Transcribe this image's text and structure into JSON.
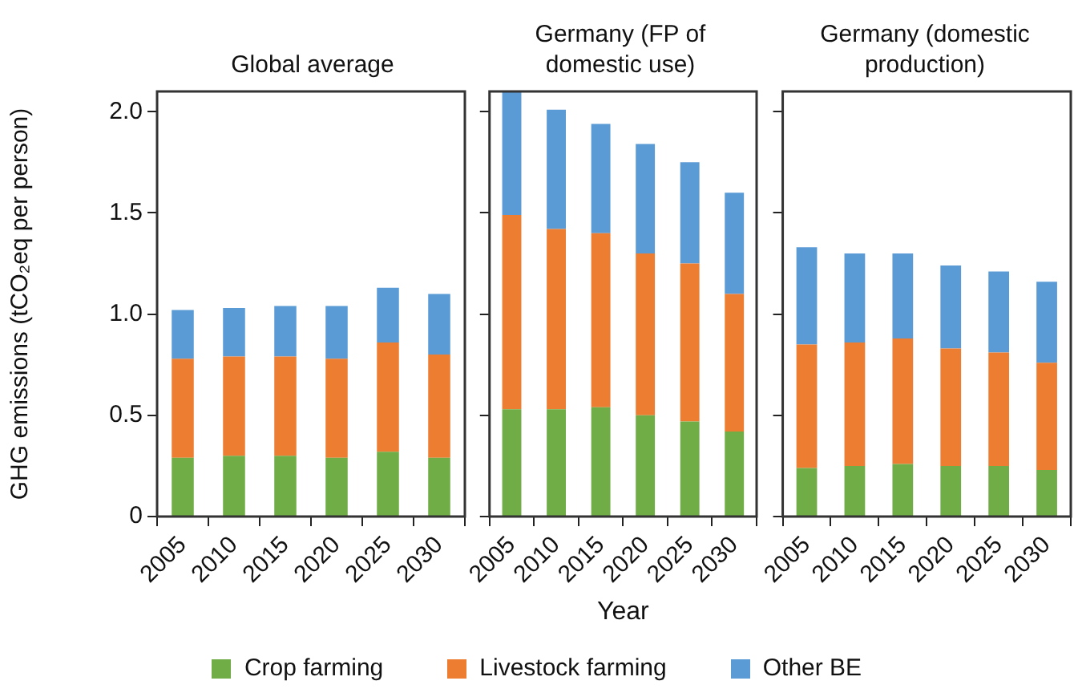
{
  "chart_data": [
    {
      "type": "bar",
      "title": "Global average",
      "ylabel": "GHG emissions (tCO₂eq per person)",
      "categories": [
        "2005",
        "2010",
        "2015",
        "2020",
        "2025",
        "2030"
      ],
      "stacked": true,
      "ylim": [
        0,
        2.1
      ],
      "yticks": [
        {
          "value": 0,
          "label": "0"
        },
        {
          "value": 0.5,
          "label": "0.5"
        },
        {
          "value": 1,
          "label": "1.0"
        },
        {
          "value": 1.5,
          "label": "1.5"
        },
        {
          "value": 2,
          "label": "2.0"
        }
      ],
      "grid": false,
      "legend": "bottom",
      "series": [
        {
          "name": "Crop farming",
          "color": "#70ad47",
          "values": [
            0.29,
            0.3,
            0.3,
            0.29,
            0.32,
            0.29
          ]
        },
        {
          "name": "Livestock farming",
          "color": "#ed7d31",
          "values": [
            0.49,
            0.49,
            0.49,
            0.49,
            0.54,
            0.51
          ]
        },
        {
          "name": "Other BE",
          "color": "#5b9bd5",
          "values": [
            0.24,
            0.24,
            0.25,
            0.26,
            0.27,
            0.3
          ]
        }
      ]
    },
    {
      "type": "bar",
      "title": "Germany (FP of domestic use)",
      "xlabel": "Year",
      "categories": [
        "2005",
        "2010",
        "2015",
        "2020",
        "2025",
        "2030"
      ],
      "stacked": true,
      "ylim": [
        0,
        2.1
      ],
      "yticks": [
        {
          "value": 0,
          "label": null
        },
        {
          "value": 0.5,
          "label": null
        },
        {
          "value": 1,
          "label": null
        },
        {
          "value": 1.5,
          "label": null
        },
        {
          "value": 2,
          "label": null
        }
      ],
      "grid": false,
      "tick_labels": "x",
      "series": [
        {
          "color": "#70ad47",
          "values": [
            0.53,
            0.53,
            0.54,
            0.5,
            0.47,
            0.42
          ]
        },
        {
          "color": "#ed7d31",
          "values": [
            0.96,
            0.89,
            0.86,
            0.8,
            0.78,
            0.68
          ]
        },
        {
          "color": "#5b9bd5",
          "values": [
            0.61,
            0.59,
            0.54,
            0.54,
            0.5,
            0.5
          ]
        }
      ]
    },
    {
      "type": "bar",
      "title": "Germany (domestic production)",
      "categories": [
        "2005",
        "2010",
        "2015",
        "2020",
        "2025",
        "2030"
      ],
      "stacked": true,
      "ylim": [
        0,
        2.1
      ],
      "yticks": [
        {
          "value": 0,
          "label": null
        },
        {
          "value": 0.5,
          "label": null
        },
        {
          "value": 1,
          "label": null
        },
        {
          "value": 1.5,
          "label": null
        },
        {
          "value": 2,
          "label": null
        }
      ],
      "grid": false,
      "tick_labels": "x",
      "series": [
        {
          "color": "#70ad47",
          "values": [
            0.24,
            0.25,
            0.26,
            0.25,
            0.25,
            0.23
          ]
        },
        {
          "color": "#ed7d31",
          "values": [
            0.61,
            0.61,
            0.62,
            0.58,
            0.56,
            0.53
          ]
        },
        {
          "color": "#5b9bd5",
          "values": [
            0.48,
            0.44,
            0.42,
            0.41,
            0.4,
            0.4
          ]
        }
      ]
    }
  ]
}
